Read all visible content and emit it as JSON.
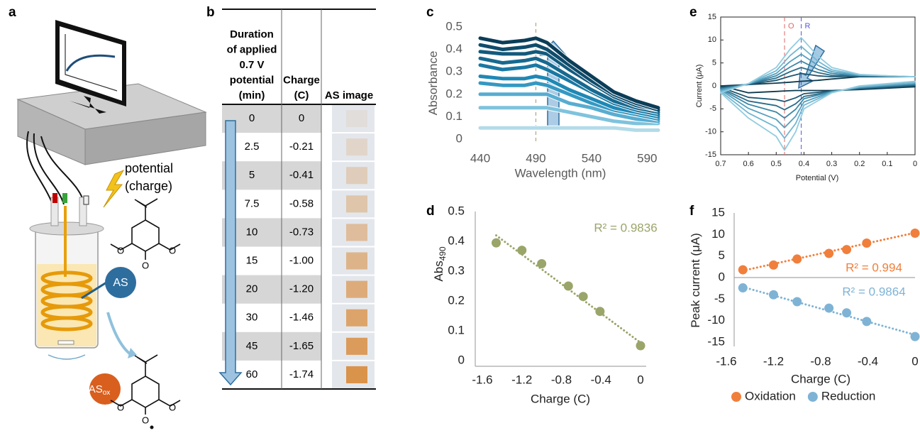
{
  "panel_labels": [
    "a",
    "b",
    "c",
    "d",
    "e",
    "f"
  ],
  "diagram": {
    "potential_label": [
      "potential",
      "(charge)"
    ],
    "as_label": "AS",
    "asox_label": "AS",
    "asox_subscript": "ox",
    "molecule_atoms": [
      "O",
      "O",
      "O"
    ],
    "oxidized_molecule_atoms": [
      "O",
      "O",
      "O"
    ]
  },
  "table": {
    "headers": [
      [
        "Duration",
        "of applied",
        "0.7 V",
        "potential",
        "(min)"
      ],
      [
        "Charge",
        "(C)"
      ],
      [
        "AS image"
      ]
    ],
    "rows": [
      [
        "0",
        "0"
      ],
      [
        "2.5",
        "-0.21"
      ],
      [
        "5",
        "-0.41"
      ],
      [
        "7.5",
        "-0.58"
      ],
      [
        "10",
        "-0.73"
      ],
      [
        "15",
        "-1.00"
      ],
      [
        "20",
        "-1.20"
      ],
      [
        "30",
        "-1.46"
      ],
      [
        "45",
        "-1.65"
      ],
      [
        "60",
        "-1.74"
      ]
    ]
  },
  "chart_data": [
    {
      "type": "line",
      "xlabel": "Wavelength (nm)",
      "ylabel": "Absorbance",
      "x": [
        440,
        460,
        480,
        490,
        500,
        520,
        540,
        560,
        580,
        600
      ],
      "xlim": [
        440,
        600
      ],
      "xticks": [
        440,
        490,
        540,
        590
      ],
      "ylim": [
        0,
        0.5
      ],
      "yticks": [
        0,
        0.1,
        0.2,
        0.3,
        0.4,
        0.5
      ],
      "vline": 490,
      "series": [
        {
          "color": "#0b3d58",
          "values": [
            0.45,
            0.43,
            0.44,
            0.45,
            0.43,
            0.35,
            0.28,
            0.21,
            0.17,
            0.14
          ]
        },
        {
          "color": "#0f4c6b",
          "values": [
            0.42,
            0.4,
            0.41,
            0.42,
            0.4,
            0.33,
            0.26,
            0.2,
            0.16,
            0.13
          ]
        },
        {
          "color": "#135a7d",
          "values": [
            0.39,
            0.38,
            0.38,
            0.39,
            0.38,
            0.31,
            0.25,
            0.19,
            0.15,
            0.13
          ]
        },
        {
          "color": "#17698f",
          "values": [
            0.36,
            0.34,
            0.35,
            0.36,
            0.34,
            0.28,
            0.22,
            0.17,
            0.14,
            0.12
          ]
        },
        {
          "color": "#1a78a3",
          "values": [
            0.33,
            0.31,
            0.32,
            0.33,
            0.31,
            0.26,
            0.21,
            0.16,
            0.13,
            0.11
          ]
        },
        {
          "color": "#1f88b5",
          "values": [
            0.28,
            0.27,
            0.27,
            0.28,
            0.27,
            0.22,
            0.18,
            0.14,
            0.12,
            0.1
          ]
        },
        {
          "color": "#3598c2",
          "values": [
            0.25,
            0.24,
            0.24,
            0.25,
            0.24,
            0.2,
            0.16,
            0.13,
            0.11,
            0.09
          ]
        },
        {
          "color": "#58add0",
          "values": [
            0.2,
            0.2,
            0.2,
            0.2,
            0.2,
            0.16,
            0.14,
            0.11,
            0.09,
            0.08
          ]
        },
        {
          "color": "#7fc3dd",
          "values": [
            0.14,
            0.14,
            0.14,
            0.14,
            0.14,
            0.12,
            0.1,
            0.08,
            0.07,
            0.07
          ]
        },
        {
          "color": "#b3dbe9",
          "values": [
            0.05,
            0.05,
            0.05,
            0.05,
            0.05,
            0.05,
            0.05,
            0.05,
            0.04,
            0.04
          ]
        }
      ]
    },
    {
      "type": "scatter",
      "xlabel": "Charge (C)",
      "ylabel": "Abs",
      "ylabel_subscript": "490",
      "annotation": "R² = 0.9836",
      "x": [
        -1.46,
        -1.2,
        -1.0,
        -0.73,
        -0.58,
        -0.41,
        0
      ],
      "xlim": [
        -1.6,
        0
      ],
      "xticks": [
        -1.6,
        -1.2,
        -0.8,
        -0.4,
        0
      ],
      "ylim": [
        0,
        0.5
      ],
      "yticks": [
        0,
        0.1,
        0.2,
        0.3,
        0.4,
        0.5
      ],
      "series": [
        {
          "color": "#9aa56a",
          "values": [
            0.395,
            0.37,
            0.325,
            0.25,
            0.215,
            0.165,
            0.05
          ],
          "trendline": {
            "x": [
              -1.46,
              0
            ],
            "values": [
              0.42,
              0.06
            ]
          }
        }
      ]
    },
    {
      "type": "line",
      "xlabel": "Potential (V)",
      "ylabel": "Current (μA)",
      "x": [
        0,
        0.1,
        0.2,
        0.3,
        0.35,
        0.41,
        0.45,
        0.5,
        0.6,
        0.7,
        0.6,
        0.5,
        0.47,
        0.43,
        0.4,
        0.3,
        0.2,
        0.1,
        0
      ],
      "xlim": [
        0.7,
        0
      ],
      "xticks": [
        0.7,
        0.6,
        0.5,
        0.4,
        0.3,
        0.2,
        0.1,
        0
      ],
      "ylim": [
        -15,
        15
      ],
      "yticks": [
        -15,
        -10,
        -5,
        0,
        5,
        10,
        15
      ],
      "vlines": [
        {
          "value": 0.47,
          "label": "O",
          "color": "#e06666"
        },
        {
          "value": 0.41,
          "label": "R",
          "color": "#5b5bd6"
        }
      ],
      "series": [
        {
          "color": "#0d3a4f",
          "values": [
            2,
            2,
            2,
            1.5,
            1.2,
            1,
            0.8,
            0.6,
            0.3,
            0,
            -1.5,
            -1.2,
            -1.1,
            -1,
            -1,
            -1,
            -0.8,
            -0.5,
            -0.2
          ]
        },
        {
          "color": "#1d5670",
          "values": [
            2,
            2,
            2.1,
            2.0,
            2.2,
            2.7,
            2.1,
            1.2,
            0.3,
            -0.3,
            -2.5,
            -3.0,
            -3.4,
            -2.6,
            -1.7,
            -1.1,
            -0.7,
            -0.3,
            0
          ]
        },
        {
          "color": "#2b6d89",
          "values": [
            2,
            2.1,
            2.2,
            2.3,
            2.9,
            4.0,
            3.1,
            1.7,
            0.4,
            -0.5,
            -3.3,
            -4.3,
            -5.2,
            -3.9,
            -2.3,
            -1.2,
            -0.5,
            -0.2,
            0.2
          ]
        },
        {
          "color": "#3d87a6",
          "values": [
            2,
            2.1,
            2.2,
            2.7,
            3.6,
            5.4,
            4.1,
            2.2,
            0.4,
            -0.7,
            -4.0,
            -5.7,
            -7.0,
            -5.1,
            -2.8,
            -1.2,
            -0.4,
            0,
            0.4
          ]
        },
        {
          "color": "#55a0bf",
          "values": [
            2,
            2.1,
            2.3,
            3.1,
            4.5,
            6.9,
            5.3,
            2.7,
            0.4,
            -0.9,
            -4.9,
            -7.3,
            -9.1,
            -6.6,
            -3.5,
            -1.3,
            -0.3,
            0.1,
            0.5
          ]
        },
        {
          "color": "#71b6d1",
          "values": [
            2,
            2.2,
            2.4,
            3.5,
            5.4,
            8.6,
            6.6,
            3.3,
            0.5,
            -1.2,
            -5.9,
            -9.0,
            -11.4,
            -8.2,
            -4.2,
            -1.4,
            -0.2,
            0.3,
            0.8
          ]
        },
        {
          "color": "#92cce0",
          "values": [
            2,
            2.2,
            2.5,
            4,
            6.5,
            10.5,
            8,
            4,
            0.5,
            -1.5,
            -7,
            -11,
            -14,
            -10,
            -5,
            -1.5,
            0,
            0.5,
            1
          ]
        }
      ]
    },
    {
      "type": "scatter",
      "xlabel": "Charge (C)",
      "ylabel": "Peak current (μA)",
      "legend": "bottom",
      "x": [
        -1.46,
        -1.2,
        -1.0,
        -0.73,
        -0.58,
        -0.41,
        0
      ],
      "xlim": [
        -1.6,
        0
      ],
      "xticks": [
        -1.6,
        -1.2,
        -0.8,
        -0.4,
        0
      ],
      "ylim": [
        -15,
        15
      ],
      "yticks": [
        -15,
        -10,
        -5,
        0,
        5,
        10,
        15
      ],
      "series": [
        {
          "name": "Oxidation",
          "color": "#f07f3c",
          "values": [
            1.8,
            2.9,
            4.3,
            5.6,
            6.5,
            8.0,
            10.3
          ],
          "trendline": {
            "x": [
              -1.46,
              0
            ],
            "values": [
              1.6,
              10.4
            ]
          },
          "annotation": "R² = 0.994"
        },
        {
          "name": "Reduction",
          "color": "#7fb3d5",
          "values": [
            -2.4,
            -4.0,
            -5.6,
            -7.1,
            -8.2,
            -10.2,
            -13.7
          ],
          "trendline": {
            "x": [
              -1.46,
              0
            ],
            "values": [
              -2.2,
              -13.3
            ]
          },
          "annotation": "R² = 0.9864"
        }
      ]
    }
  ]
}
